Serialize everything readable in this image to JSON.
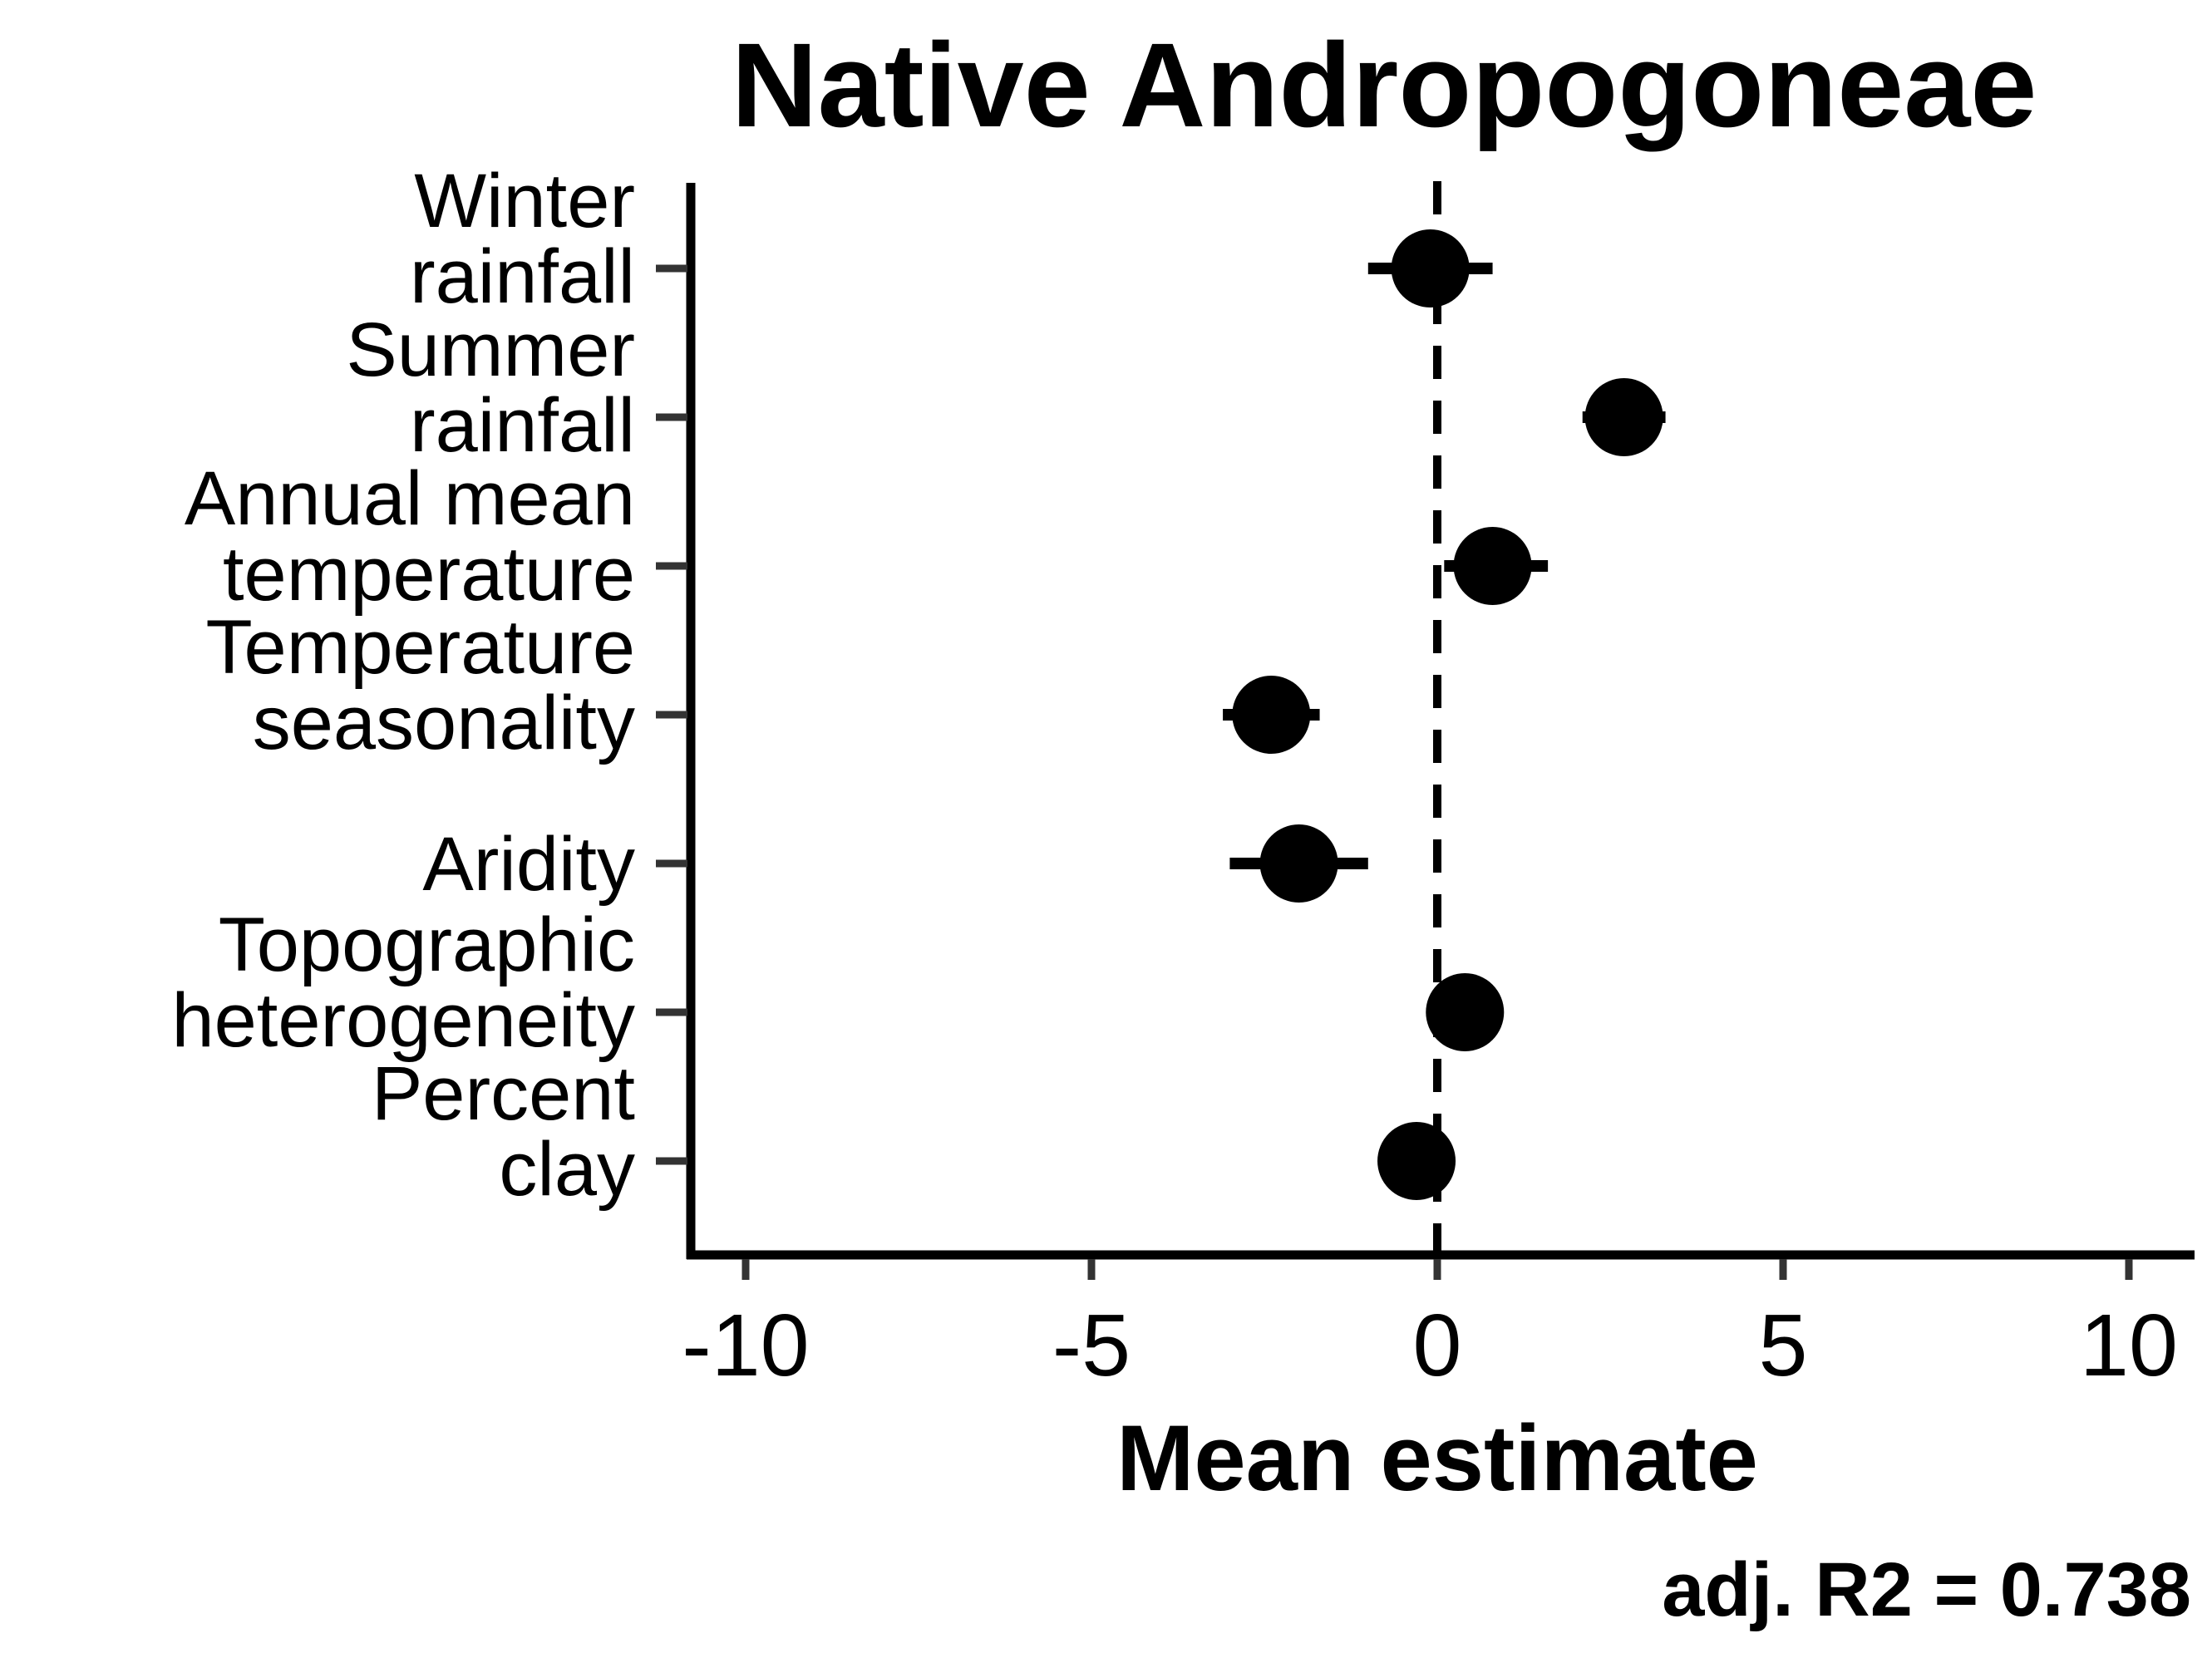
{
  "chart_data": {
    "type": "scatter",
    "title": "Native Andropogoneae",
    "xlabel": "Mean estimate",
    "ylabel": "",
    "xlim": [
      -11,
      11
    ],
    "xticks": [
      -10,
      -5,
      0,
      5,
      10
    ],
    "xtick_labels": [
      "-10",
      "-5",
      "0",
      "5",
      "10"
    ],
    "reference_line": {
      "x": 0,
      "style": "dashed"
    },
    "grid": false,
    "categories": [
      {
        "label": [
          "Winter",
          "rainfall"
        ]
      },
      {
        "label": [
          "Summer",
          "rainfall"
        ]
      },
      {
        "label": [
          "Annual mean",
          "temperature"
        ]
      },
      {
        "label": [
          "Temperature",
          "seasonality"
        ]
      },
      {
        "label": [
          "Aridity"
        ]
      },
      {
        "label": [
          "Topographic",
          "heterogeneity"
        ]
      },
      {
        "label": [
          "Percent",
          "clay"
        ]
      }
    ],
    "points": [
      {
        "estimate": -0.1,
        "lower": -1.0,
        "upper": 0.8
      },
      {
        "estimate": 2.7,
        "lower": 2.1,
        "upper": 3.3
      },
      {
        "estimate": 0.8,
        "lower": 0.1,
        "upper": 1.6
      },
      {
        "estimate": -2.4,
        "lower": -3.1,
        "upper": -1.7
      },
      {
        "estimate": -2.0,
        "lower": -3.0,
        "upper": -1.0
      },
      {
        "estimate": 0.4,
        "lower": 0.3,
        "upper": 0.5
      },
      {
        "estimate": -0.3,
        "lower": -0.4,
        "upper": -0.2
      }
    ],
    "annotation": "adj. R2 = 0.738",
    "colors": {
      "points": "#000000",
      "axes": "#000000",
      "ticks": "#333333"
    }
  }
}
